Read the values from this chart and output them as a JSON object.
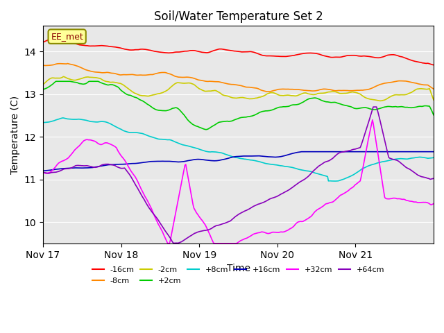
{
  "title": "Soil/Water Temperature Set 2",
  "xlabel": "Time",
  "ylabel": "Temperature (C)",
  "ylim": [
    9.5,
    14.6
  ],
  "xlim": [
    0,
    480
  ],
  "annotation": "EE_met",
  "xtick_labels": [
    "Nov 17",
    "Nov 18",
    "Nov 19",
    "Nov 20",
    "Nov 21"
  ],
  "xtick_positions": [
    0,
    96,
    192,
    288,
    384
  ],
  "background_color": "#e8e8e8",
  "series_colors": {
    "-16cm": "#ff0000",
    "-8cm": "#ff8800",
    "-2cm": "#cccc00",
    "+2cm": "#00cc00",
    "+8cm": "#00cccc",
    "+16cm": "#0000bb",
    "+32cm": "#ff00ff",
    "+64cm": "#8800bb"
  }
}
